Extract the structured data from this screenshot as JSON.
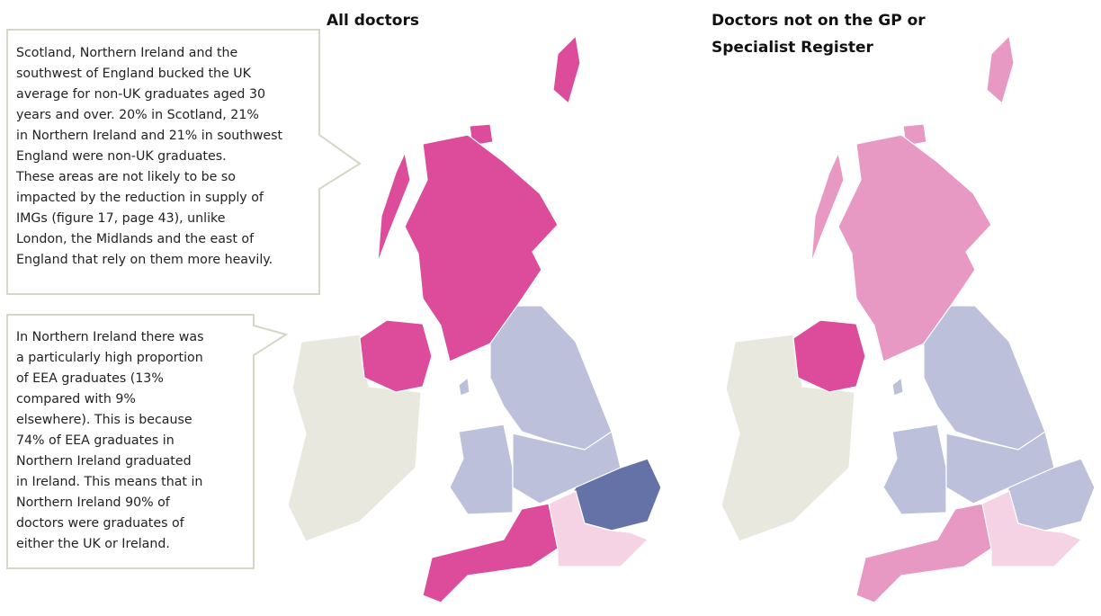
{
  "maps": [
    {
      "title_lines": [
        "All doctors"
      ]
    },
    {
      "title_lines": [
        "Doctors not on the GP or",
        "Specialist Register"
      ]
    }
  ],
  "callouts": [
    {
      "lines": [
        "Scotland, Northern Ireland and the",
        "southwest of England bucked the UK",
        "average for non-UK graduates aged 30",
        "years and over. 20% in Scotland, 21%",
        "in Northern Ireland and 21% in southwest",
        "England were non-UK graduates.",
        "These areas are not likely to be so",
        "impacted by the reduction in supply of",
        "IMGs (figure 17, page 43), unlike",
        "London, the Midlands and the east of",
        "England that rely on them more heavily."
      ]
    },
    {
      "lines": [
        "In Northern Ireland there was",
        "a particularly high proportion",
        "of EEA graduates (13%",
        "compared with 9%",
        "elsewhere). This is because",
        "74% of EEA graduates  in",
        "Northern Ireland graduated",
        "in Ireland. This means that in",
        "Northern Ireland 90% of",
        "doctors were graduates of",
        "either the UK or Ireland."
      ]
    }
  ]
}
